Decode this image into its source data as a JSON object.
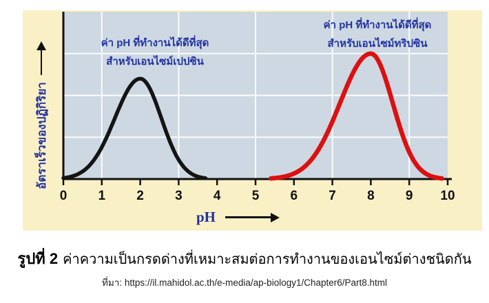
{
  "figure": {
    "background_color": "#FAF0C6",
    "plot_background_color": "#CDD8E2",
    "grid_color": "#FFFFFF",
    "axis_color": "#111111",
    "annotation_color": "#2233A0",
    "caption_bold": "รูปที่ 2",
    "caption_text": "ค่าความเป็นกรดด่างที่เหมาะสมต่อการทำงานของเอนไซม์ต่างชนิดกัน",
    "source_text": "ที่มา: https://il.mahidol.ac.th/e-media/ap-biology1/Chapter6/Part8.html"
  },
  "chart_data": {
    "type": "line",
    "title": "",
    "xlabel": "pH",
    "ylabel": "อัตราเร็วของปฏิกิริยา",
    "xlim": [
      0,
      10
    ],
    "ylim": [
      0,
      1
    ],
    "x_ticks": [
      0,
      1,
      2,
      3,
      4,
      5,
      6,
      7,
      8,
      9,
      10
    ],
    "grid": {
      "vertical_at_ph": [
        1,
        3,
        5,
        7,
        9
      ],
      "horizontal_fractions": [
        0.25,
        0.5,
        0.75
      ]
    },
    "legend_position": "none",
    "series": [
      {
        "name": "pepsin",
        "color": "#141414",
        "stroke_width": 5.5,
        "optimum_ph": 2,
        "peak_ph": 2,
        "peak_rate": 0.6,
        "ph_start": 0,
        "ph_end": 3.7,
        "sigma_left": 0.66,
        "sigma_right": 0.55,
        "annotation": {
          "line1": "ค่า pH ที่ทำงานได้ดีที่สุด",
          "line2": "สำหรับเอนไซม์เปปซิน"
        }
      },
      {
        "name": "trypsin",
        "color": "#DC1010",
        "stroke_width": 6.5,
        "optimum_ph": 8,
        "peak_ph": 8,
        "peak_rate": 0.75,
        "ph_start": 5.4,
        "ph_end": 9.85,
        "sigma_left": 0.8,
        "sigma_right": 0.57,
        "annotation": {
          "line1": "ค่า pH ที่ทำงานได้ดีที่สุด",
          "line2": "สำหรับเอนไซม์ทริปซิน"
        }
      }
    ]
  }
}
